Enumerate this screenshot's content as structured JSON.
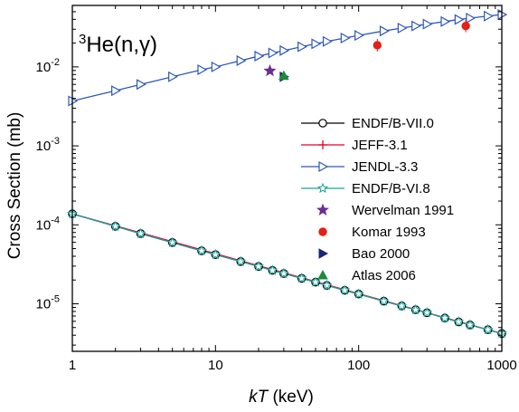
{
  "chart_data": {
    "type": "line",
    "title_sup": "3",
    "title_main": "He(n,γ)",
    "xlabel_italic": "kT",
    "xlabel_unit": " (keV)",
    "ylabel": "Cross Section (mb)",
    "xscale": "log",
    "yscale": "log",
    "xlim": [
      1,
      1000
    ],
    "ylim": [
      2.5e-06,
      0.06
    ],
    "x_ticks": [
      1,
      10,
      100,
      1000
    ],
    "x_tick_labels": [
      "1",
      "10",
      "100",
      "1000"
    ],
    "y_ticks": [
      1e-05,
      0.0001,
      0.001,
      0.01
    ],
    "y_tick_labels": [
      {
        "base": "10",
        "exp": "-5"
      },
      {
        "base": "10",
        "exp": "-4"
      },
      {
        "base": "10",
        "exp": "-3"
      },
      {
        "base": "10",
        "exp": "-2"
      }
    ],
    "grid": false,
    "legend_position": "right",
    "series": [
      {
        "name": "ENDF/B-VII.0",
        "color": "#000000",
        "marker": "circle-open",
        "x": [
          1,
          2,
          3,
          5,
          8,
          10,
          15,
          20,
          25,
          30,
          40,
          50,
          60,
          80,
          100,
          150,
          200,
          250,
          300,
          400,
          500,
          600,
          800,
          1000
        ],
        "y": [
          0.000138,
          9.58e-05,
          7.75e-05,
          5.97e-05,
          4.69e-05,
          4.2e-05,
          3.43e-05,
          2.97e-05,
          2.65e-05,
          2.42e-05,
          2.1e-05,
          1.88e-05,
          1.71e-05,
          1.48e-05,
          1.33e-05,
          1.08e-05,
          9.4e-06,
          8.4e-06,
          7.7e-06,
          6.6e-06,
          5.9e-06,
          5.4e-06,
          4.7e-06,
          4.2e-06
        ]
      },
      {
        "name": "JEFF-3.1",
        "color": "#e8002a",
        "marker": "plus",
        "x": [
          1,
          1000
        ],
        "y": [
          0.000138,
          4.2e-06
        ]
      },
      {
        "name": "JENDL-3.3",
        "color": "#2e58b8",
        "marker": "triangle-right-open",
        "x": [
          1,
          2,
          3,
          5,
          8,
          10,
          15,
          20,
          25,
          30,
          40,
          50,
          60,
          80,
          100,
          150,
          200,
          250,
          300,
          400,
          500,
          600,
          800,
          1000
        ],
        "y": [
          0.0037,
          0.005,
          0.006,
          0.0075,
          0.0092,
          0.01,
          0.012,
          0.0137,
          0.015,
          0.0161,
          0.018,
          0.0196,
          0.021,
          0.0232,
          0.025,
          0.0285,
          0.031,
          0.033,
          0.0348,
          0.0375,
          0.0398,
          0.0415,
          0.044,
          0.046
        ]
      },
      {
        "name": "ENDF/B-VI.8",
        "color": "#1aa39a",
        "marker": "star-open",
        "x": [
          1,
          2,
          3,
          5,
          8,
          10,
          15,
          20,
          25,
          30,
          40,
          50,
          60,
          80,
          100,
          150,
          200,
          250,
          300,
          400,
          500,
          600,
          800,
          1000
        ],
        "y": [
          0.000138,
          9.58e-05,
          7.75e-05,
          5.97e-05,
          4.69e-05,
          4.2e-05,
          3.43e-05,
          2.97e-05,
          2.65e-05,
          2.42e-05,
          2.1e-05,
          1.88e-05,
          1.71e-05,
          1.48e-05,
          1.33e-05,
          1.08e-05,
          9.4e-06,
          8.4e-06,
          7.7e-06,
          6.6e-06,
          5.9e-06,
          5.4e-06,
          4.7e-06,
          4.2e-06
        ]
      }
    ],
    "experiments": [
      {
        "name": "Wervelman 1991",
        "color": "#6b2c91",
        "marker": "star",
        "x": [
          24
        ],
        "y": [
          0.0089
        ]
      },
      {
        "name": "Komar 1993",
        "color": "#e32119",
        "marker": "circle",
        "x": [
          135,
          560
        ],
        "y": [
          0.0188,
          0.033
        ]
      },
      {
        "name": "Bao 2000",
        "color": "#1c2678",
        "marker": "triangle-right",
        "x": [
          30
        ],
        "y": [
          0.0075
        ]
      },
      {
        "name": "Atlas 2006",
        "color": "#1f8a3c",
        "marker": "triangle-up",
        "x": [
          30
        ],
        "y": [
          0.0077
        ]
      }
    ]
  }
}
